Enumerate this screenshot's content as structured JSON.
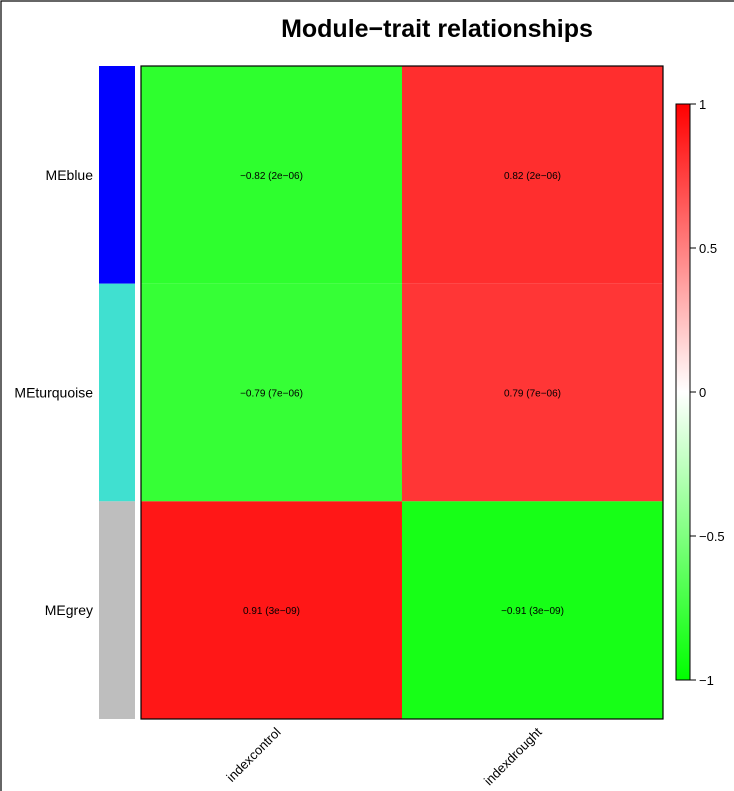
{
  "chart_data": {
    "type": "heatmap",
    "title": "Module−trait relationships",
    "rows": [
      "MEblue",
      "MEturquoise",
      "MEgrey"
    ],
    "row_colors": [
      "#0000ff",
      "#40e0d0",
      "#bebebe"
    ],
    "columns": [
      "indexcontrol",
      "indexdrought"
    ],
    "values": [
      [
        -0.82,
        0.82
      ],
      [
        -0.79,
        0.79
      ],
      [
        0.91,
        -0.91
      ]
    ],
    "cell_labels": [
      [
        "−0.82  (2e−06)",
        "0.82  (2e−06)"
      ],
      [
        "−0.79  (7e−06)",
        "0.79  (7e−06)"
      ],
      [
        "0.91  (3e−09)",
        "−0.91  (3e−09)"
      ]
    ],
    "color_scale": {
      "min": -1,
      "max": 1,
      "low_color": "#00ff00",
      "mid_color": "#ffffff",
      "high_color": "#ff0000",
      "tick_values": [
        1,
        0.5,
        0,
        -0.5,
        -1
      ],
      "tick_labels": [
        "1",
        "0.5",
        "0",
        "−0.5",
        "−1"
      ]
    },
    "legend": "right"
  }
}
